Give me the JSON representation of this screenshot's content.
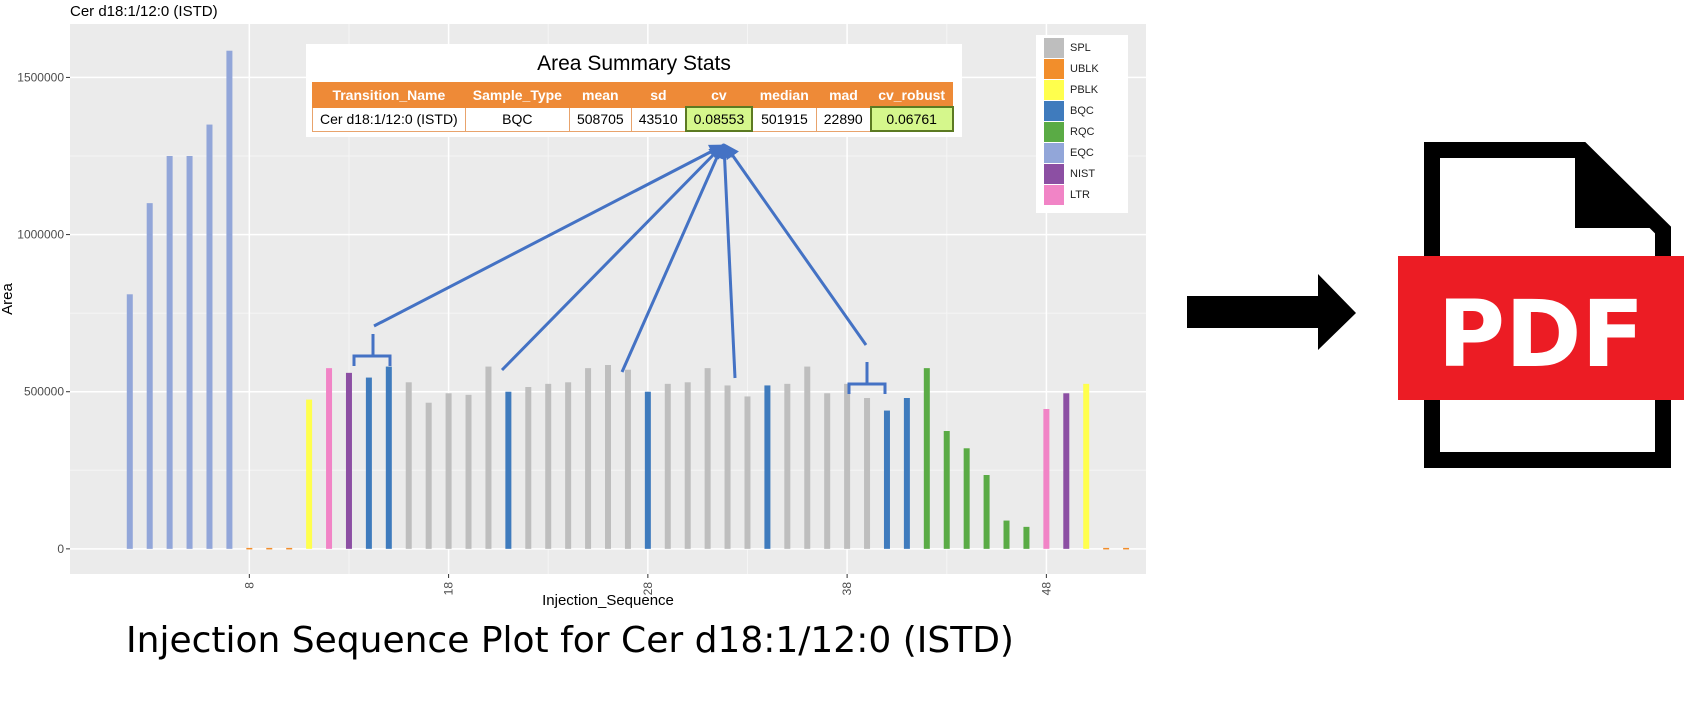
{
  "chart_data": {
    "type": "bar",
    "title": "Cer d18:1/12:0 (ISTD)",
    "xlabel": "Injection_Sequence",
    "ylabel": "Area",
    "xlim": [
      -1,
      53
    ],
    "ylim": [
      -80000,
      1670000
    ],
    "x_ticks": [
      8,
      18,
      28,
      38,
      48
    ],
    "x_tick_labels": [
      "8",
      "18",
      "28",
      "38",
      "48"
    ],
    "y_ticks": [
      0,
      500000,
      1000000,
      1500000
    ],
    "y_tick_labels": [
      "0",
      "500000",
      "1000000",
      "1500000"
    ],
    "grid": true,
    "legend_position": "top-right",
    "legend": [
      {
        "name": "SPL",
        "color": "#bebebe"
      },
      {
        "name": "UBLK",
        "color": "#f28e2b"
      },
      {
        "name": "PBLK",
        "color": "#ffff4d"
      },
      {
        "name": "BQC",
        "color": "#3f7bbd"
      },
      {
        "name": "RQC",
        "color": "#5aab45"
      },
      {
        "name": "EQC",
        "color": "#92a6d9"
      },
      {
        "name": "NIST",
        "color": "#8c4fa3"
      },
      {
        "name": "LTR",
        "color": "#f184c6"
      }
    ],
    "bars": [
      {
        "x": 2,
        "value": 810000,
        "type": "EQC"
      },
      {
        "x": 3,
        "value": 1100000,
        "type": "EQC"
      },
      {
        "x": 4,
        "value": 1250000,
        "type": "EQC"
      },
      {
        "x": 5,
        "value": 1250000,
        "type": "EQC"
      },
      {
        "x": 6,
        "value": 1350000,
        "type": "EQC"
      },
      {
        "x": 7,
        "value": 1585000,
        "type": "EQC"
      },
      {
        "x": 8,
        "value": 3000,
        "type": "UBLK"
      },
      {
        "x": 9,
        "value": 3000,
        "type": "UBLK"
      },
      {
        "x": 10,
        "value": 3000,
        "type": "UBLK"
      },
      {
        "x": 11,
        "value": 475000,
        "type": "PBLK"
      },
      {
        "x": 12,
        "value": 575000,
        "type": "LTR"
      },
      {
        "x": 13,
        "value": 560000,
        "type": "NIST"
      },
      {
        "x": 14,
        "value": 545000,
        "type": "BQC"
      },
      {
        "x": 15,
        "value": 580000,
        "type": "BQC"
      },
      {
        "x": 16,
        "value": 530000,
        "type": "SPL"
      },
      {
        "x": 17,
        "value": 465000,
        "type": "SPL"
      },
      {
        "x": 18,
        "value": 495000,
        "type": "SPL"
      },
      {
        "x": 19,
        "value": 490000,
        "type": "SPL"
      },
      {
        "x": 20,
        "value": 580000,
        "type": "SPL"
      },
      {
        "x": 21,
        "value": 500000,
        "type": "BQC"
      },
      {
        "x": 22,
        "value": 515000,
        "type": "SPL"
      },
      {
        "x": 23,
        "value": 525000,
        "type": "SPL"
      },
      {
        "x": 24,
        "value": 530000,
        "type": "SPL"
      },
      {
        "x": 25,
        "value": 575000,
        "type": "SPL"
      },
      {
        "x": 26,
        "value": 585000,
        "type": "SPL"
      },
      {
        "x": 27,
        "value": 570000,
        "type": "SPL"
      },
      {
        "x": 28,
        "value": 500000,
        "type": "BQC"
      },
      {
        "x": 29,
        "value": 525000,
        "type": "SPL"
      },
      {
        "x": 30,
        "value": 530000,
        "type": "SPL"
      },
      {
        "x": 31,
        "value": 575000,
        "type": "SPL"
      },
      {
        "x": 32,
        "value": 520000,
        "type": "SPL"
      },
      {
        "x": 33,
        "value": 485000,
        "type": "SPL"
      },
      {
        "x": 34,
        "value": 520000,
        "type": "BQC"
      },
      {
        "x": 35,
        "value": 525000,
        "type": "SPL"
      },
      {
        "x": 36,
        "value": 580000,
        "type": "SPL"
      },
      {
        "x": 37,
        "value": 495000,
        "type": "SPL"
      },
      {
        "x": 38,
        "value": 525000,
        "type": "SPL"
      },
      {
        "x": 39,
        "value": 480000,
        "type": "SPL"
      },
      {
        "x": 40,
        "value": 440000,
        "type": "BQC"
      },
      {
        "x": 41,
        "value": 480000,
        "type": "BQC"
      },
      {
        "x": 42,
        "value": 575000,
        "type": "RQC"
      },
      {
        "x": 43,
        "value": 375000,
        "type": "RQC"
      },
      {
        "x": 44,
        "value": 320000,
        "type": "RQC"
      },
      {
        "x": 45,
        "value": 235000,
        "type": "RQC"
      },
      {
        "x": 46,
        "value": 90000,
        "type": "RQC"
      },
      {
        "x": 47,
        "value": 70000,
        "type": "RQC"
      },
      {
        "x": 48,
        "value": 445000,
        "type": "LTR"
      },
      {
        "x": 49,
        "value": 495000,
        "type": "NIST"
      },
      {
        "x": 50,
        "value": 525000,
        "type": "PBLK"
      },
      {
        "x": 51,
        "value": 3000,
        "type": "UBLK"
      },
      {
        "x": 52,
        "value": 3000,
        "type": "UBLK"
      }
    ]
  },
  "stats_table": {
    "title": "Area Summary Stats",
    "headers": [
      "Transition_Name",
      "Sample_Type",
      "mean",
      "sd",
      "cv",
      "median",
      "mad",
      "cv_robust"
    ],
    "row": [
      "Cer d18:1/12:0 (ISTD)",
      "BQC",
      "508705",
      "43510",
      "0.08553",
      "501915",
      "22890",
      "0.06761"
    ],
    "highlighted_columns": [
      "cv",
      "cv_robust"
    ]
  },
  "caption": "Injection Sequence Plot for Cer d18:1/12:0 (ISTD)",
  "pdf_icon": {
    "label": "PDF",
    "color": "#ec1c24",
    "icon": "pdf-file-icon"
  },
  "arrow": {
    "icon": "right-arrow-icon",
    "color": "#000000"
  },
  "annotation_arrow_color": "#4472c4"
}
